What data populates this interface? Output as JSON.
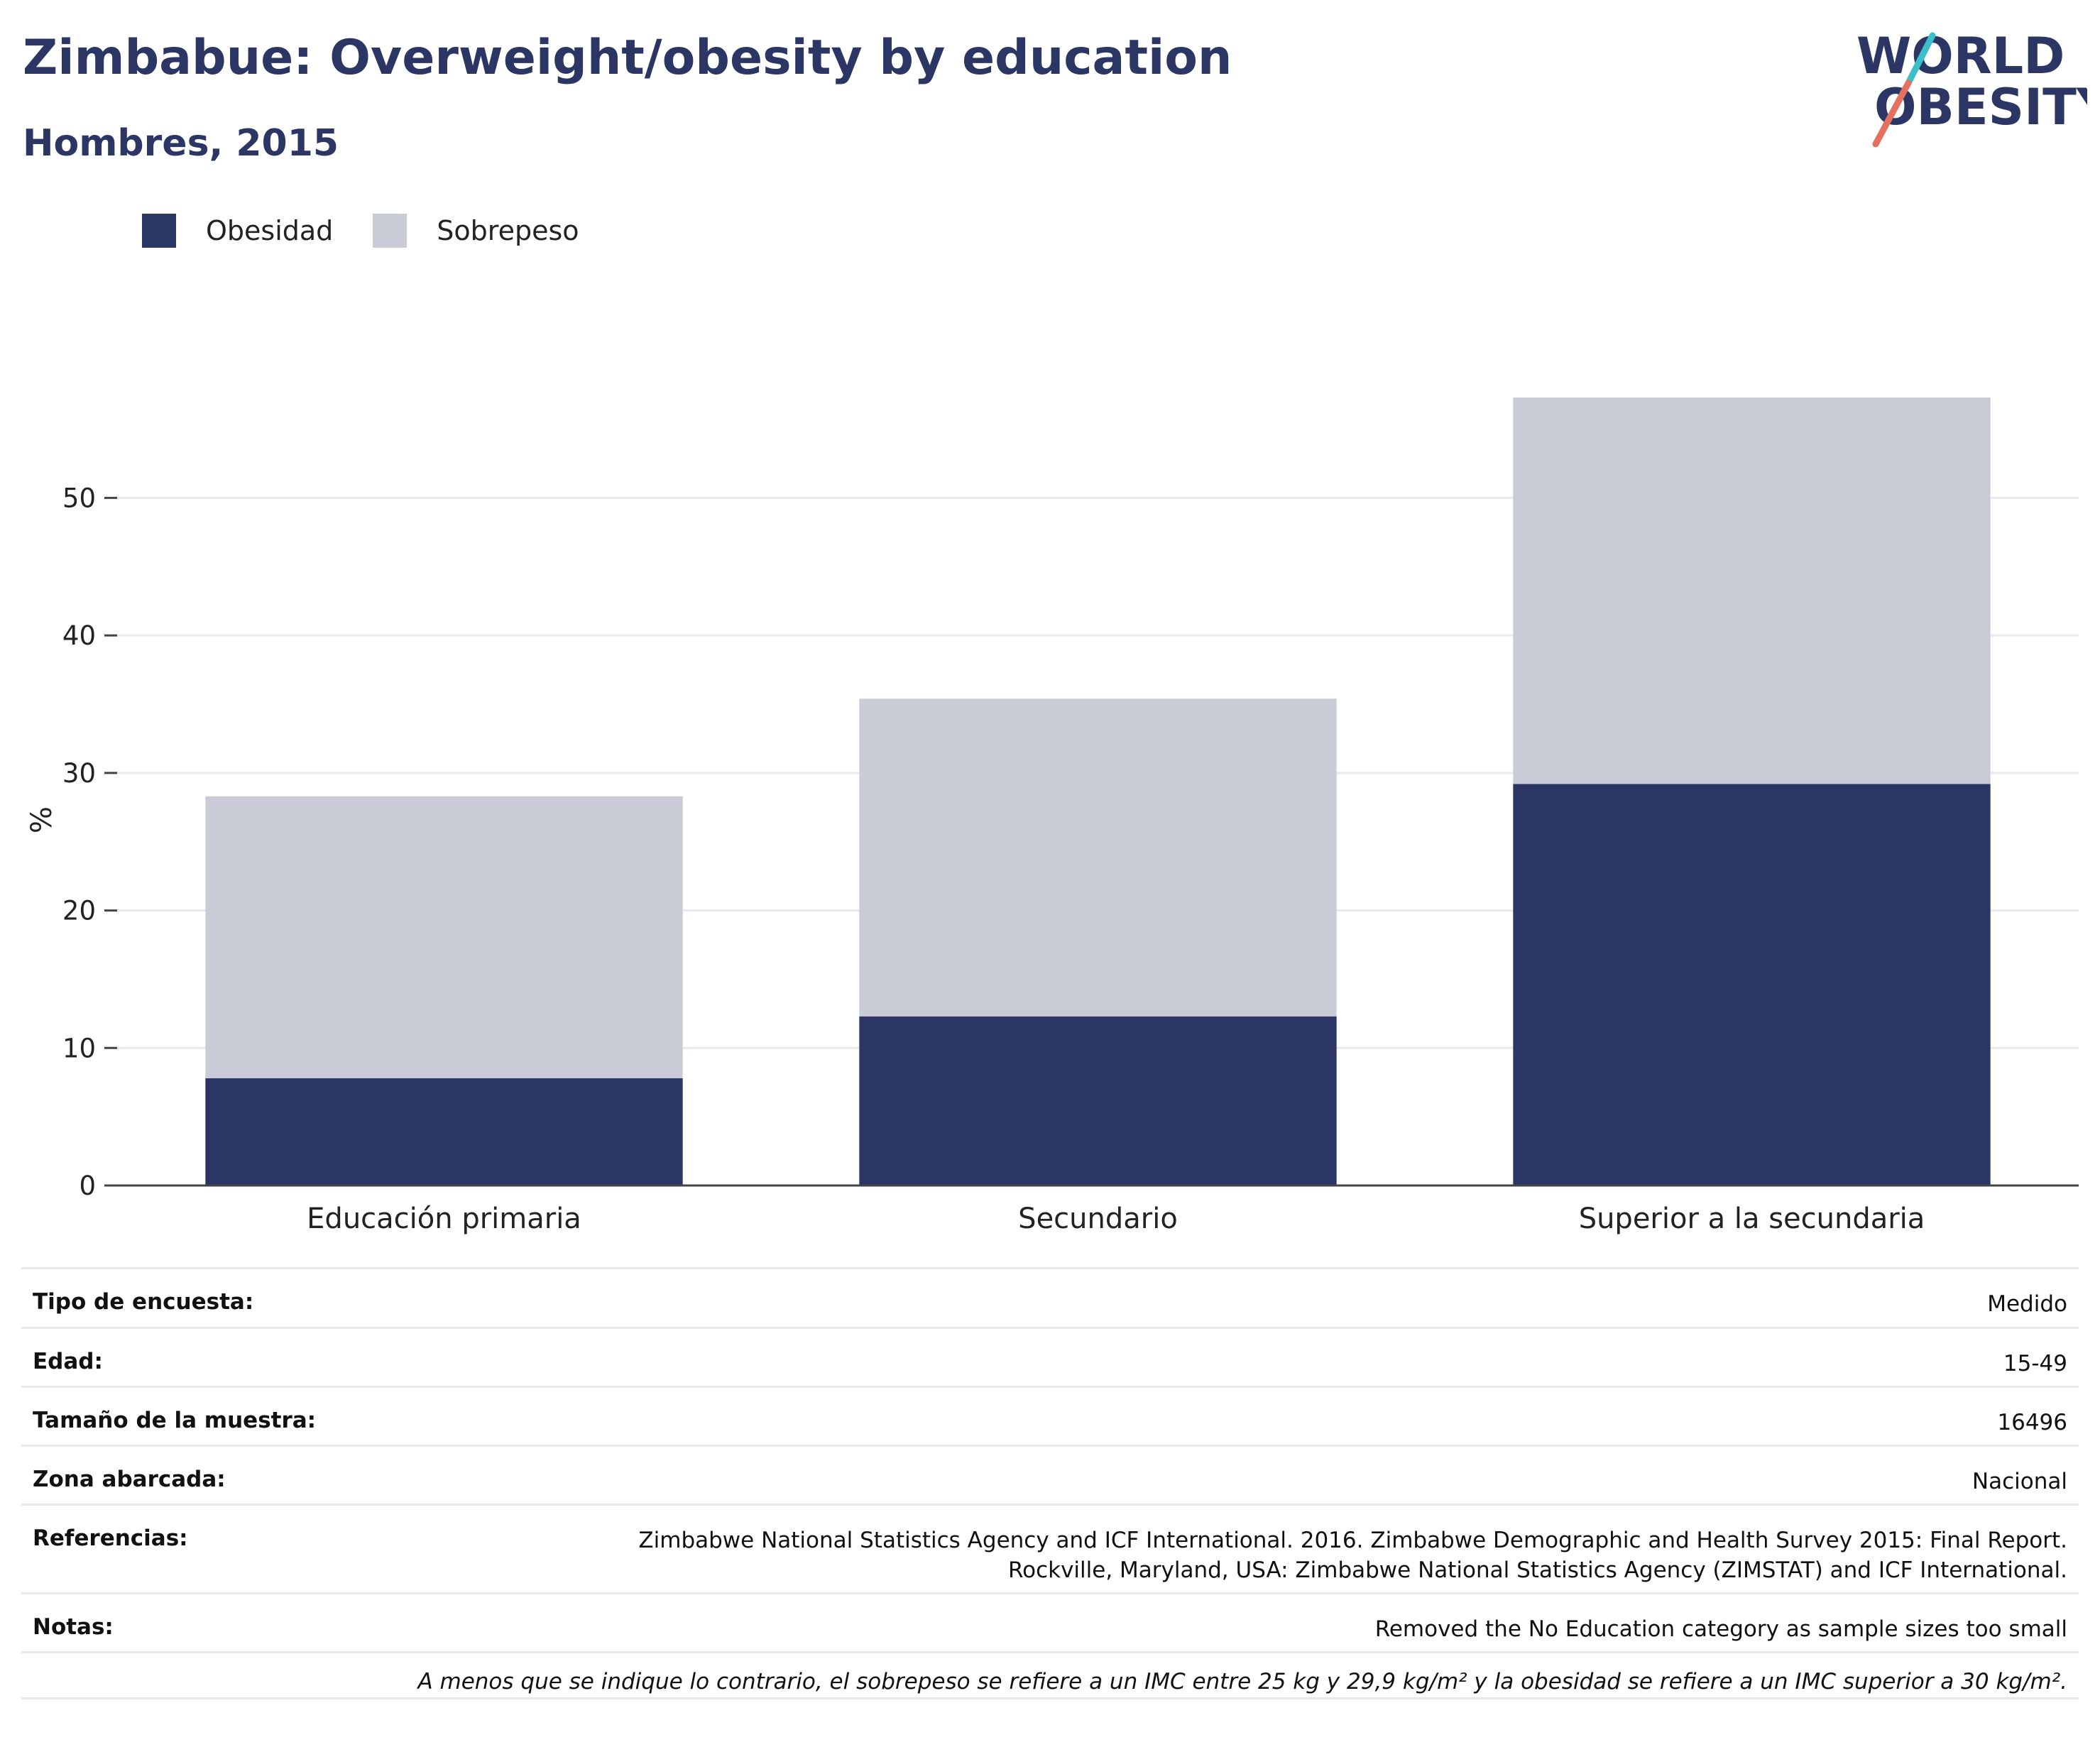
{
  "header": {
    "title": "Zimbabue: Overweight/obesity by education",
    "subtitle": "Hombres, 2015"
  },
  "logo": {
    "line1": "WORLD",
    "line2": "OBESITY"
  },
  "legend": [
    {
      "label": "Obesidad",
      "color": "#2b3664"
    },
    {
      "label": "Sobrepeso",
      "color": "#c9cbd6"
    }
  ],
  "chart_data": {
    "type": "bar",
    "stacked": true,
    "categories": [
      "Educación primaria",
      "Secundario",
      "Superior a la secundaria"
    ],
    "series": [
      {
        "name": "Obesidad",
        "values": [
          7.8,
          12.3,
          29.2
        ],
        "color": "#2b3664"
      },
      {
        "name": "Sobrepeso",
        "values": [
          20.5,
          23.1,
          28.1
        ],
        "color": "#c9cbd6"
      }
    ],
    "ylabel": "%",
    "yticks": [
      0,
      10,
      20,
      30,
      40,
      50
    ],
    "ylim": [
      0,
      57.3
    ],
    "grid": true
  },
  "info": [
    {
      "key": "Tipo de encuesta:",
      "value": "Medido"
    },
    {
      "key": "Edad:",
      "value": "15-49"
    },
    {
      "key": "Tamaño de la muestra:",
      "value": "16496"
    },
    {
      "key": "Zona abarcada:",
      "value": "Nacional"
    },
    {
      "key": "Referencias:",
      "value": "Zimbabwe National Statistics Agency and ICF International. 2016. Zimbabwe Demographic and Health Survey 2015: Final Report.",
      "value2": "Rockville, Maryland, USA: Zimbabwe National Statistics Agency (ZIMSTAT) and ICF International."
    },
    {
      "key": "Notas:",
      "value": "Removed the No Education category as sample sizes too small"
    }
  ],
  "footnote": "A menos que se indique lo contrario, el sobrepeso se refiere a un IMC entre 25 kg y 29,9 kg/m² y la obesidad se refiere a un IMC superior a 30 kg/m²."
}
